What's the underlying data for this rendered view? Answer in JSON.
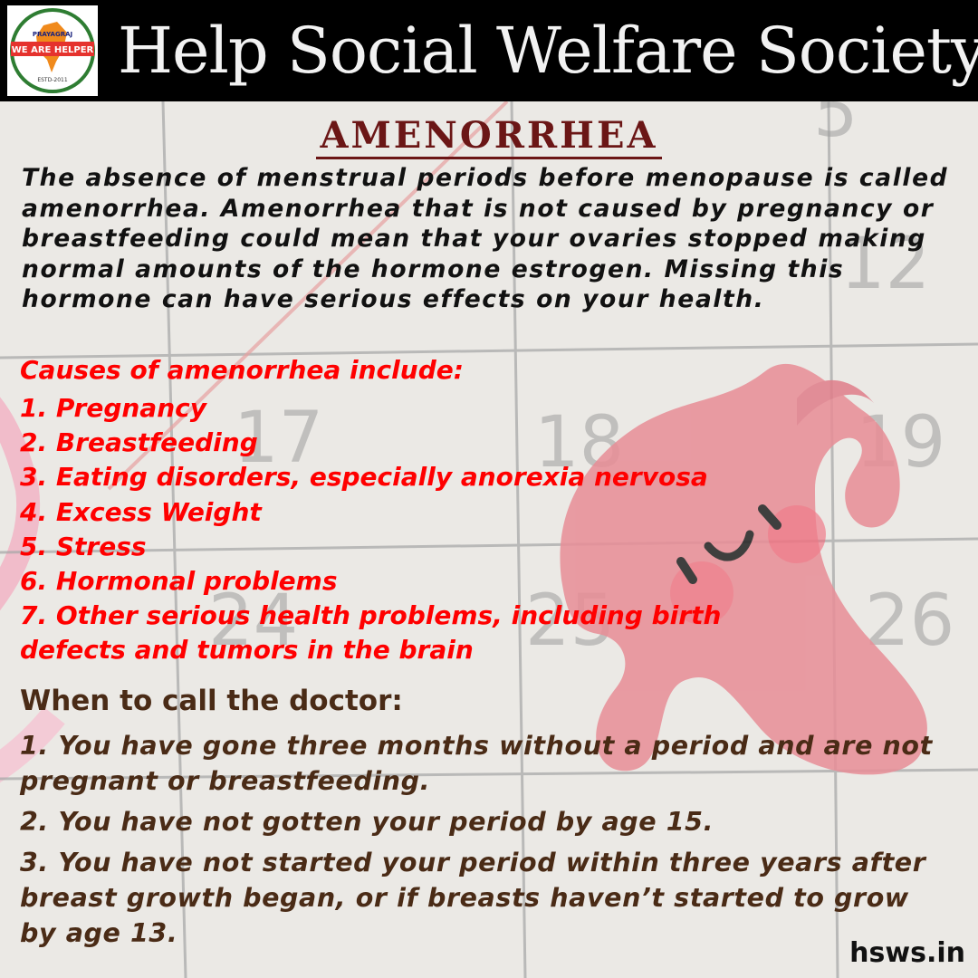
{
  "header": {
    "brand": "Help Social Welfare Society",
    "logo": {
      "text_arc": "HELP SOCIAL WELFARE SOCIETY",
      "city": "PRAYAGRAJ",
      "motto": "WE ARE HELPER",
      "estd": "ESTD-2011",
      "colors": {
        "ring": "#2e7d32",
        "ribbon": "#e5322d",
        "map": "#f08a1c"
      }
    }
  },
  "background": {
    "calendar_days": [
      "5",
      "12",
      "17",
      "18",
      "19",
      "24",
      "25",
      "26"
    ]
  },
  "title": "AMENORRHEA",
  "intro": "The absence of menstrual periods before menopause is called amenorrhea. Amenorrhea that is not caused by pregnancy or breastfeeding could mean that your ovaries stopped making normal amounts of the hormone estrogen. Missing this hormone can have serious effects on your health.",
  "causes": {
    "heading": "Causes of amenorrhea include:",
    "items": [
      "1. Pregnancy",
      "2. Breastfeeding",
      "3. Eating disorders, especially anorexia nervosa",
      "4. Excess Weight",
      "5. Stress",
      "6. Hormonal problems",
      "7. Other serious health problems, including birth defects and tumors in the brain"
    ]
  },
  "doctor": {
    "heading": "When to call the doctor:",
    "items": [
      "1. You have gone three months without a period and are not pregnant or breastfeeding.",
      "2. You have not gotten your period by age 15.",
      "3. You have not started your period within three years after breast growth began, or if breasts haven’t started to grow by age 13."
    ]
  },
  "footer": {
    "site": "hsws.in"
  },
  "colors": {
    "header_bg": "#000000",
    "title": "#6b1616",
    "causes": "#ff0000",
    "doctor": "#4a2b16",
    "uterus": "#e88d96"
  }
}
